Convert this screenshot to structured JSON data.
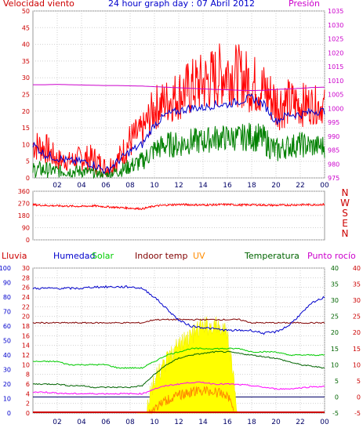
{
  "title": "24 hour graph day : 07 Abril 2012",
  "colors": {
    "wind": "#ff0000",
    "gust_avg": "#0000cc",
    "wind_avg": "#008000",
    "pressure": "#cc00cc",
    "rain": "#cc0000",
    "humidity": "#0000cc",
    "solar": "#00cc00",
    "indoor": "#800000",
    "uv": "#ff8c00",
    "temperature": "#006400",
    "dewpoint": "#ff00ff",
    "solar_fill": "#ffff00",
    "grid": "#d0d0d0",
    "axis_left": "#cc0000",
    "axis_right": "#cc00cc"
  },
  "chart_data": [
    {
      "type": "line",
      "name": "wind-panel",
      "title": "24 hour graph day : 07 Abril 2012",
      "ylabel_left": "Velocidad viento",
      "ylabel_right": "Presión",
      "xticks": [
        "02",
        "04",
        "06",
        "08",
        "10",
        "12",
        "14",
        "16",
        "18",
        "20",
        "22",
        "00"
      ],
      "yticks_left": [
        0,
        5,
        10,
        15,
        20,
        25,
        30,
        35,
        40,
        45,
        50
      ],
      "yticks_right": [
        975,
        980,
        985,
        990,
        995,
        1000,
        1005,
        1010,
        1015,
        1020,
        1025,
        1030,
        1035
      ],
      "ylim_left": [
        0,
        50
      ],
      "ylim_right": [
        975,
        1035
      ],
      "x_hours": [
        0,
        1,
        2,
        3,
        4,
        5,
        6,
        7,
        8,
        9,
        10,
        11,
        12,
        13,
        14,
        15,
        16,
        17,
        18,
        19,
        20,
        21,
        22,
        23,
        24
      ],
      "series": [
        {
          "key": "gust",
          "color": "wind",
          "values_max": [
            15,
            14,
            9,
            8,
            10,
            10,
            6,
            9,
            17,
            19,
            28,
            30,
            33,
            36,
            38,
            40,
            42,
            40,
            38,
            35,
            31,
            30,
            29,
            28,
            27
          ],
          "values_min": [
            5,
            4,
            2,
            2,
            2,
            1,
            0,
            2,
            5,
            9,
            14,
            16,
            17,
            18,
            19,
            20,
            22,
            21,
            19,
            18,
            14,
            15,
            15,
            16,
            16
          ]
        },
        {
          "key": "gust_avg",
          "color": "gust_avg",
          "values": [
            10,
            7,
            6,
            5,
            5,
            4,
            2,
            5,
            8,
            10,
            16,
            19,
            20,
            21,
            21,
            22,
            22,
            23,
            24,
            22,
            17,
            19,
            19,
            20,
            20
          ]
        },
        {
          "key": "wind_avg",
          "color": "wind_avg",
          "values_max": [
            5,
            5,
            4,
            4,
            4,
            3,
            2,
            4,
            6,
            8,
            12,
            14,
            14,
            15,
            15,
            16,
            16,
            16,
            17,
            16,
            12,
            13,
            14,
            13,
            13
          ],
          "values_min": [
            0,
            0,
            0,
            0,
            0,
            0,
            0,
            0,
            1,
            2,
            5,
            6,
            6,
            7,
            7,
            8,
            8,
            8,
            8,
            7,
            4,
            6,
            6,
            6,
            6
          ]
        },
        {
          "key": "pressure",
          "color": "pressure",
          "axis": "right",
          "values": [
            1008.5,
            1008.5,
            1008.6,
            1008.5,
            1008.4,
            1008.3,
            1008.2,
            1008.2,
            1008.1,
            1008.0,
            1007.8,
            1007.6,
            1007.4,
            1007.2,
            1007.0,
            1006.8,
            1006.7,
            1006.5,
            1006.4,
            1006.5,
            1006.8,
            1007.0,
            1007.2,
            1007.5,
            1007.6
          ]
        }
      ]
    },
    {
      "type": "line",
      "name": "direction-panel",
      "yticks": [
        0,
        90,
        180,
        270,
        360
      ],
      "ylim": [
        0,
        360
      ],
      "labels_right": [
        "N",
        "W",
        "S",
        "E",
        "N"
      ],
      "x_hours": [
        0,
        1,
        2,
        3,
        4,
        5,
        6,
        7,
        8,
        9,
        10,
        11,
        12,
        13,
        14,
        15,
        16,
        17,
        18,
        19,
        20,
        21,
        22,
        23,
        24
      ],
      "values": [
        260,
        255,
        252,
        250,
        248,
        252,
        245,
        240,
        235,
        230,
        250,
        258,
        262,
        260,
        258,
        260,
        262,
        258,
        260,
        258,
        256,
        258,
        260,
        260,
        262
      ],
      "color": "wind"
    },
    {
      "type": "line",
      "name": "weather-panel",
      "labels": {
        "rain": "Lluvia",
        "humidity": "Humedad",
        "solar": "Solar",
        "indoor": "Indoor temp",
        "uv": "UV",
        "temperature": "Temperatura",
        "dewpoint": "Punto rocío"
      },
      "xticks": [
        "02",
        "04",
        "06",
        "08",
        "10",
        "12",
        "14",
        "16",
        "18",
        "20",
        "22",
        "00"
      ],
      "yticks_humidity": [
        0,
        10,
        20,
        30,
        40,
        50,
        60,
        70,
        80,
        90,
        100
      ],
      "yticks_rain": [
        0,
        2,
        4,
        6,
        8,
        10,
        12,
        14,
        16,
        18,
        20,
        22,
        24,
        26,
        28,
        30
      ],
      "yticks_temp": [
        -5,
        0,
        5,
        10,
        15,
        20,
        25,
        30,
        35,
        40
      ],
      "yticks_dew": [
        -5,
        0,
        5,
        10,
        15,
        20,
        25,
        30,
        35,
        40
      ],
      "ylim_humidity": [
        0,
        100
      ],
      "ylim_rain": [
        0,
        30
      ],
      "ylim_temp": [
        -5,
        40
      ],
      "x_hours": [
        0,
        1,
        2,
        3,
        4,
        5,
        6,
        7,
        8,
        9,
        10,
        11,
        12,
        13,
        14,
        15,
        16,
        17,
        18,
        19,
        20,
        21,
        22,
        23,
        24
      ],
      "series": [
        {
          "key": "humidity",
          "color": "humidity",
          "axis": "humidity",
          "values": [
            86,
            86,
            86,
            86,
            86,
            87,
            87,
            87,
            87,
            86,
            80,
            72,
            64,
            60,
            59,
            58,
            57,
            57,
            57,
            55,
            56,
            60,
            68,
            76,
            80
          ]
        },
        {
          "key": "indoor",
          "color": "indoor",
          "axis": "temp",
          "values": [
            23,
            23,
            23,
            23,
            23,
            23,
            23,
            23,
            23,
            23,
            24,
            24,
            24,
            24,
            24,
            24,
            24,
            24,
            23,
            23,
            23,
            23,
            23,
            23,
            23
          ]
        },
        {
          "key": "solar_line",
          "color": "solar",
          "axis": "temp",
          "values": [
            11,
            11,
            11,
            10,
            10,
            10,
            10,
            9,
            9,
            9,
            11,
            13,
            14,
            15,
            15,
            15,
            15,
            15,
            14,
            14,
            14,
            13,
            13,
            13,
            13
          ]
        },
        {
          "key": "temperature",
          "color": "temperature",
          "axis": "temp",
          "values": [
            4,
            4,
            4,
            3.5,
            3.5,
            3,
            3,
            3,
            3,
            3.5,
            7,
            10,
            12,
            13,
            13.5,
            14,
            14,
            13.5,
            13,
            12.5,
            12,
            11,
            10,
            9.5,
            9
          ]
        },
        {
          "key": "dewpoint",
          "color": "dewpoint",
          "axis": "temp",
          "values": [
            1.5,
            1.5,
            1.2,
            1,
            1,
            1,
            1,
            1,
            1,
            1,
            2.5,
            3.5,
            4,
            4.5,
            4.5,
            4,
            4,
            3.8,
            3.5,
            3,
            2.5,
            2.5,
            2.8,
            3.2,
            3.2
          ]
        },
        {
          "key": "solar_fill",
          "color": "solar_fill",
          "axis": "temp",
          "values": [
            -5,
            -5,
            -5,
            -5,
            -5,
            -5,
            -5,
            -5,
            -5,
            -4.5,
            8,
            14,
            19,
            22,
            25,
            25,
            23,
            -5,
            -5,
            -5,
            -5,
            -5,
            -5,
            -5,
            -5
          ]
        },
        {
          "key": "uv",
          "color": "uv",
          "axis": "temp",
          "values": [
            -5,
            -5,
            -5,
            -5,
            -5,
            -5,
            -5,
            -5,
            -5,
            -5,
            -2,
            0.5,
            2,
            3,
            3.5,
            3,
            2,
            -5,
            -5,
            -5,
            -5,
            -5,
            -5,
            -5,
            -5
          ]
        },
        {
          "key": "rain",
          "color": "rain",
          "axis": "rain",
          "values": [
            0,
            0,
            0,
            0,
            0,
            0,
            0,
            0,
            0,
            0,
            0,
            0,
            0,
            0,
            0,
            0,
            0,
            0,
            0,
            0,
            0,
            0,
            0,
            0,
            0
          ]
        }
      ]
    }
  ]
}
